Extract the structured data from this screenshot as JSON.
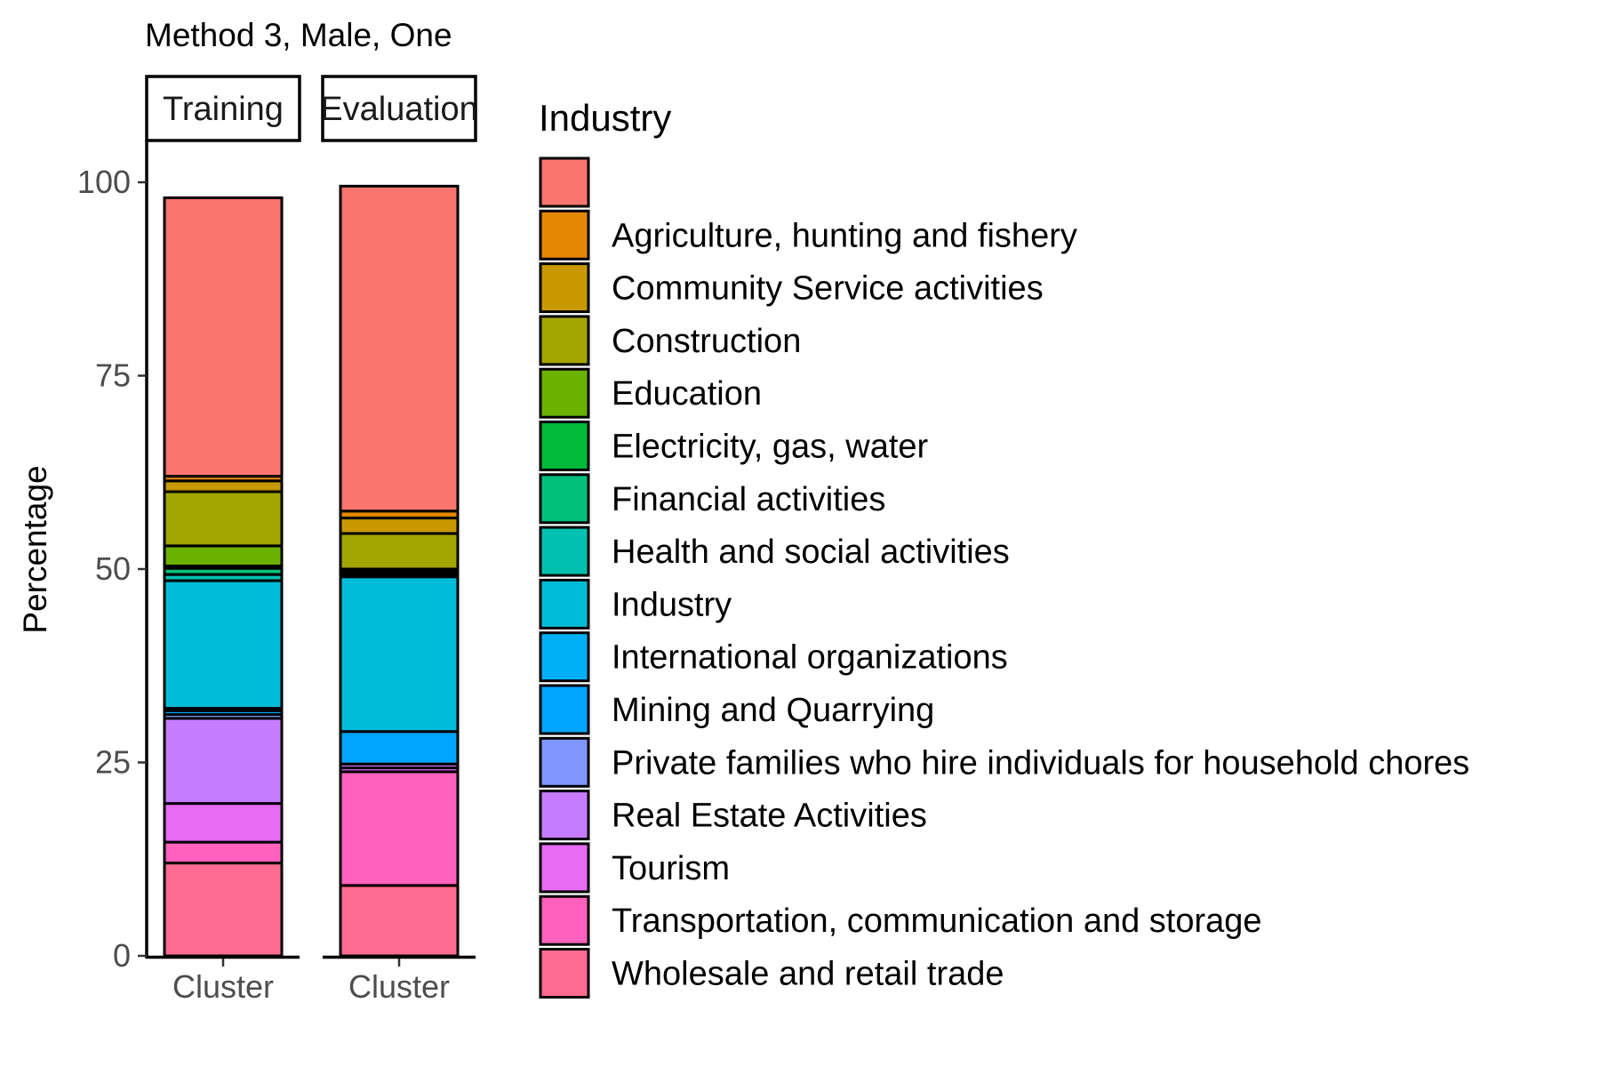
{
  "chart_data": {
    "type": "bar",
    "stacked": true,
    "title": "Method 3, Male, One",
    "ylabel": "Percentage",
    "ylim": [
      0,
      100
    ],
    "yticks": [
      0,
      25,
      50,
      75,
      100
    ],
    "grid": false,
    "legend": {
      "title": "Industry",
      "position": "right"
    },
    "panels": [
      {
        "name": "Training",
        "x": "Cluster"
      },
      {
        "name": "Evaluation",
        "x": "Cluster"
      }
    ],
    "series": [
      {
        "name": "",
        "color": "#F8766D",
        "values": [
          36,
          42
        ]
      },
      {
        "name": "Agriculture, hunting and fishery",
        "color": "#E58700",
        "values": [
          0.6,
          0.9
        ]
      },
      {
        "name": "Community Service activities",
        "color": "#C99800",
        "values": [
          1.4,
          2.0
        ]
      },
      {
        "name": "Construction",
        "color": "#A3A500",
        "values": [
          7,
          4.6
        ]
      },
      {
        "name": "Education",
        "color": "#6BB100",
        "values": [
          2.6,
          0.3
        ]
      },
      {
        "name": "Electricity, gas, water",
        "color": "#00BA38",
        "values": [
          0.3,
          0.2
        ]
      },
      {
        "name": "Financial activities",
        "color": "#00BF7D",
        "values": [
          0.8,
          0.3
        ]
      },
      {
        "name": "Health and social activities",
        "color": "#00C0AF",
        "values": [
          0.8,
          0.2
        ]
      },
      {
        "name": "Industry",
        "color": "#00BCD8",
        "values": [
          16.5,
          20
        ]
      },
      {
        "name": "International organizations",
        "color": "#00B0F6",
        "values": [
          0.3,
          0
        ]
      },
      {
        "name": "Mining and Quarrying",
        "color": "#00A5FF",
        "values": [
          0.5,
          4.2
        ]
      },
      {
        "name": "Private families who hire individuals for household chores",
        "color": "#7F96FF",
        "values": [
          0.5,
          0
        ]
      },
      {
        "name": "Real Estate Activities",
        "color": "#C77CFF",
        "values": [
          11,
          0.5
        ]
      },
      {
        "name": "Tourism",
        "color": "#E76BF3",
        "values": [
          5,
          0.5
        ]
      },
      {
        "name": "Transportation, communication and storage",
        "color": "#FF62BC",
        "values": [
          2.7,
          14.7
        ]
      },
      {
        "name": "Wholesale and retail trade",
        "color": "#FF6C91",
        "values": [
          12,
          9.1
        ]
      }
    ]
  }
}
